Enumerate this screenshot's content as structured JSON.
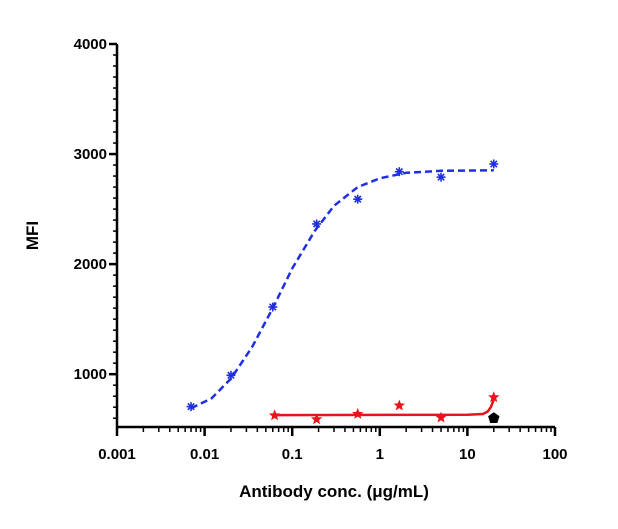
{
  "chart_data": {
    "type": "scatter",
    "title": "",
    "xlabel": "Antibody conc. (μg/mL)",
    "ylabel": "MFI",
    "x_scale": "log",
    "xlim": [
      0.001,
      100
    ],
    "ylim": [
      520,
      4000
    ],
    "x_ticks": [
      0.001,
      0.01,
      0.1,
      1,
      10,
      100
    ],
    "x_tick_labels": [
      "0.001",
      "0.01",
      "0.1",
      "1",
      "10",
      "100"
    ],
    "y_ticks": [
      1000,
      2000,
      3000,
      4000
    ],
    "y_tick_labels": [
      "1000",
      "2000",
      "3000",
      "4000"
    ],
    "grid": false,
    "legend": "none",
    "series": [
      {
        "marker": "asterisk",
        "color": "#1f2fe0",
        "line_style": "dashed",
        "points": [
          {
            "x": 0.007,
            "y": 705
          },
          {
            "x": 0.02,
            "y": 990
          },
          {
            "x": 0.06,
            "y": 1610
          },
          {
            "x": 0.19,
            "y": 2365
          },
          {
            "x": 0.56,
            "y": 2590
          },
          {
            "x": 1.67,
            "y": 2840
          },
          {
            "x": 5,
            "y": 2790
          },
          {
            "x": 20,
            "y": 2910
          }
        ],
        "fit": [
          {
            "x": 0.007,
            "y": 690
          },
          {
            "x": 0.012,
            "y": 780
          },
          {
            "x": 0.02,
            "y": 960
          },
          {
            "x": 0.035,
            "y": 1250
          },
          {
            "x": 0.06,
            "y": 1600
          },
          {
            "x": 0.1,
            "y": 1960
          },
          {
            "x": 0.18,
            "y": 2300
          },
          {
            "x": 0.3,
            "y": 2530
          },
          {
            "x": 0.56,
            "y": 2700
          },
          {
            "x": 1,
            "y": 2780
          },
          {
            "x": 2,
            "y": 2830
          },
          {
            "x": 5,
            "y": 2848
          },
          {
            "x": 20,
            "y": 2852
          }
        ]
      },
      {
        "marker": "star",
        "color": "#e8141b",
        "line_style": "solid",
        "points": [
          {
            "x": 0.063,
            "y": 625
          },
          {
            "x": 0.19,
            "y": 590
          },
          {
            "x": 0.56,
            "y": 638
          },
          {
            "x": 1.67,
            "y": 715
          },
          {
            "x": 5,
            "y": 605
          },
          {
            "x": 20,
            "y": 790
          }
        ],
        "fit": [
          {
            "x": 0.063,
            "y": 628
          },
          {
            "x": 1,
            "y": 630
          },
          {
            "x": 10,
            "y": 632
          },
          {
            "x": 15,
            "y": 638
          },
          {
            "x": 17,
            "y": 660
          },
          {
            "x": 18.5,
            "y": 700
          },
          {
            "x": 20,
            "y": 770
          }
        ]
      },
      {
        "marker": "pentagon",
        "color": "#000000",
        "line_style": "none",
        "points": [
          {
            "x": 20,
            "y": 600
          }
        ],
        "fit": []
      }
    ]
  }
}
